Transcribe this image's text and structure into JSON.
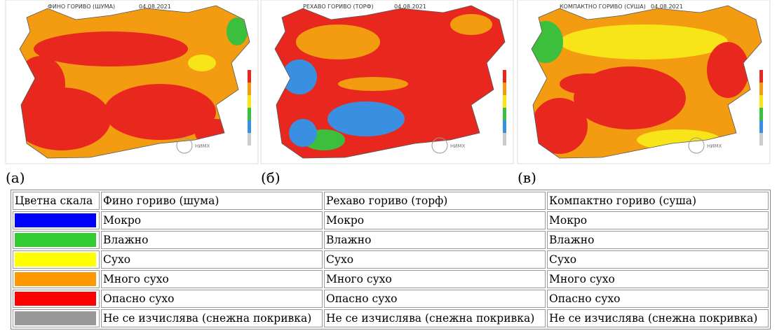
{
  "maps": [
    {
      "title": "ФИНО ГОРИВО (ШУМА)",
      "date": "04.08.2021",
      "logo": "НИМХ",
      "caption": "(а)"
    },
    {
      "title": "РЕХАВО ГОРИВО (ТОРФ)",
      "date": "04.08.2021",
      "logo": "НИМХ",
      "caption": "(б)"
    },
    {
      "title": "КОМПАКТНО ГОРИВО (СУША)",
      "date": "04.08.2021",
      "logo": "НИМХ",
      "caption": "(в)"
    }
  ],
  "table": {
    "header": [
      "Цветна скала",
      "Фино гориво (шума)",
      "Рехаво гориво (торф)",
      "Компактно гориво (суша)"
    ],
    "rows": [
      [
        "Мокро",
        "Мокро",
        "Мокро"
      ],
      [
        "Влажно",
        "Влажно",
        "Влажно"
      ],
      [
        "Сухо",
        "Сухо",
        "Сухо"
      ],
      [
        "Много сухо",
        "Много сухо",
        "Много сухо"
      ],
      [
        "Опасно сухо",
        "Опасно сухо",
        "Опасно сухо"
      ],
      [
        "Не се изчислява (снежна покривка)",
        "Не се изчислява (снежна покривка)",
        "Не се изчислява (снежна покривка)"
      ]
    ]
  }
}
